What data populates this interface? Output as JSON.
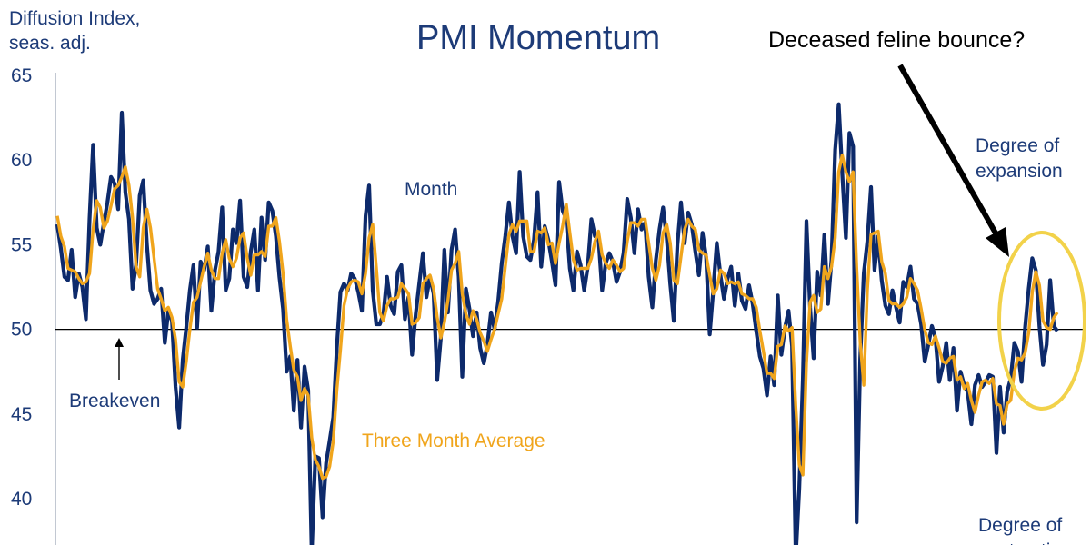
{
  "chart_data": {
    "type": "line",
    "title": "PMI Momentum",
    "ylabel": "Diffusion Index,\nseas. adj.",
    "ylabel_lines": [
      "Diffusion Index,",
      "seas. adj."
    ],
    "ylim": [
      38.5,
      65
    ],
    "yticks": [
      40,
      45,
      50,
      55,
      60,
      65
    ],
    "grid": false,
    "reference_line": {
      "y": 50,
      "label": "Breakeven"
    },
    "annotations": {
      "arrow_text": "Deceased feline bounce?",
      "top_right": [
        "Degree of",
        "expansion"
      ],
      "bottom_right": [
        "Degree of",
        "contraction"
      ],
      "month_label": "Month",
      "avg_label": "Three Month Average"
    },
    "colors": {
      "month": "#0d2a6b",
      "average": "#f0a51c",
      "text": "#1d3b78",
      "ellipse": "#f2d24a"
    },
    "series": [
      {
        "name": "Month",
        "values": [
          56.2,
          54.8,
          53.1,
          52.9,
          54.7,
          51.9,
          53.3,
          52.5,
          50.6,
          56.5,
          60.9,
          56.0,
          55.0,
          56.3,
          57.5,
          59.0,
          58.6,
          57.1,
          62.8,
          58.1,
          56.5,
          52.4,
          53.8,
          57.9,
          58.8,
          55.0,
          52.3,
          51.5,
          51.8,
          52.4,
          49.2,
          51.1,
          50.5,
          46.6,
          44.2,
          48.2,
          50.1,
          52.3,
          53.8,
          50.1,
          54.0,
          53.5,
          54.9,
          51.1,
          53.5,
          54.6,
          57.2,
          52.3,
          53.0,
          55.9,
          55.1,
          57.6,
          53.1,
          52.5,
          54.6,
          55.9,
          52.3,
          56.6,
          54.1,
          57.5,
          57.0,
          55.5,
          53.1,
          51.2,
          47.5,
          48.4,
          45.2,
          48.2,
          44.2,
          47.8,
          46.4,
          36.8,
          42.5,
          42.4,
          38.9,
          42.1,
          43.4,
          44.8,
          48.9,
          52.2,
          52.7,
          52.3,
          53.3,
          53.0,
          52.2,
          51.1,
          56.7,
          58.5,
          52.3,
          50.3,
          50.3,
          50.9,
          53.1,
          51.4,
          50.9,
          53.4,
          53.8,
          50.6,
          51.9,
          48.5,
          50.9,
          52.7,
          54.5,
          51.9,
          53.1,
          52.1,
          47.0,
          49.5,
          54.7,
          51.0,
          54.7,
          55.9,
          53.1,
          47.2,
          52.4,
          51.2,
          49.6,
          51.0,
          48.9,
          48.0,
          49.1,
          51.0,
          50.0,
          51.6,
          53.9,
          55.5,
          57.5,
          55.5,
          54.5,
          59.3,
          55.5,
          54.3,
          54.1,
          55.3,
          58.1,
          53.7,
          56.1,
          55.3,
          54.0,
          52.6,
          58.7,
          57.0,
          56.5,
          53.6,
          52.3,
          54.6,
          53.8,
          52.3,
          53.7,
          56.5,
          55.5,
          55.4,
          52.3,
          53.9,
          54.5,
          54.0,
          52.8,
          53.4,
          54.5,
          57.7,
          56.6,
          54.5,
          57.1,
          55.9,
          56.3,
          53.1,
          51.3,
          54.1,
          55.9,
          57.2,
          55.4,
          52.7,
          50.5,
          55.0,
          57.5,
          55.1,
          56.9,
          56.2,
          54.6,
          53.2,
          55.7,
          54.3,
          49.7,
          52.3,
          55.1,
          53.2,
          51.8,
          53.0,
          53.7,
          51.4,
          53.3,
          51.7,
          51.2,
          52.6,
          51.5,
          49.9,
          48.4,
          47.7,
          46.1,
          48.4,
          46.7,
          52.0,
          48.5,
          50.1,
          51.1,
          49.0,
          36.5,
          40.6,
          47.1,
          56.4,
          51.3,
          48.3,
          53.4,
          52.0,
          55.6,
          51.5,
          54.1,
          60.6,
          63.3,
          59.2,
          55.4,
          61.6,
          60.8,
          38.6,
          48.3,
          53.3,
          55.2,
          58.4,
          53.5,
          55.5,
          52.9,
          51.4,
          50.9,
          52.3,
          51.3,
          50.4,
          52.8,
          52.5,
          53.7,
          51.8,
          51.5,
          50.3,
          48.1,
          49.1,
          50.2,
          49.5,
          46.9,
          47.8,
          49.2,
          47.0,
          48.9,
          45.2,
          47.5,
          46.7,
          46.3,
          44.4,
          46.7,
          47.3,
          46.6,
          46.9,
          47.3,
          47.2,
          42.7,
          46.6,
          43.9,
          46.3,
          47.1,
          49.2,
          48.7,
          46.9,
          50.1,
          52.4,
          54.2,
          53.5,
          50.2,
          47.9,
          49.1,
          52.9,
          50.2,
          49.9
        ]
      },
      {
        "name": "Three Month Average",
        "values": [
          56.7,
          55.5,
          54.9,
          53.6,
          53.5,
          53.4,
          53.0,
          52.7,
          52.8,
          53.3,
          55.9,
          57.6,
          57.2,
          56.0,
          56.4,
          57.3,
          58.3,
          58.5,
          59.0,
          59.6,
          58.5,
          56.6,
          53.7,
          53.1,
          56.0,
          57.1,
          56.0,
          54.2,
          52.4,
          51.8,
          51.1,
          51.3,
          50.7,
          49.4,
          46.9,
          46.6,
          48.1,
          50.0,
          51.6,
          51.9,
          52.8,
          53.7,
          54.5,
          53.5,
          53.0,
          53.0,
          54.5,
          55.3,
          54.2,
          53.7,
          54.2,
          55.4,
          55.7,
          54.2,
          53.2,
          54.4,
          54.4,
          54.6,
          54.3,
          56.1,
          56.1,
          56.6,
          55.2,
          53.3,
          50.6,
          49.0,
          47.6,
          47.2,
          45.8,
          46.5,
          46.1,
          43.6,
          42.3,
          41.9,
          41.2,
          41.3,
          41.9,
          43.4,
          46.4,
          48.8,
          51.4,
          52.4,
          52.8,
          52.9,
          52.8,
          52.1,
          53.3,
          55.4,
          56.2,
          53.7,
          51.0,
          50.5,
          51.4,
          51.8,
          51.8,
          51.9,
          52.7,
          52.4,
          52.1,
          50.3,
          50.4,
          50.7,
          52.7,
          53.0,
          53.2,
          52.4,
          50.7,
          49.5,
          50.4,
          51.7,
          53.5,
          53.9,
          54.6,
          52.1,
          50.9,
          50.3,
          51.1,
          50.6,
          49.8,
          49.3,
          48.7,
          49.4,
          50.0,
          50.9,
          51.8,
          53.7,
          55.6,
          56.2,
          55.8,
          56.4,
          56.4,
          56.4,
          54.6,
          54.6,
          55.8,
          55.7,
          56.0,
          55.0,
          55.1,
          53.9,
          55.1,
          56.1,
          57.4,
          55.7,
          54.1,
          53.5,
          53.6,
          53.6,
          53.6,
          54.2,
          55.2,
          55.8,
          54.4,
          53.9,
          53.6,
          54.1,
          53.8,
          53.4,
          53.6,
          55.2,
          56.3,
          56.3,
          56.1,
          56.5,
          56.5,
          55.1,
          53.6,
          52.9,
          53.8,
          55.7,
          56.2,
          55.1,
          52.9,
          52.7,
          54.3,
          55.9,
          56.5,
          56.1,
          55.9,
          54.7,
          54.5,
          54.4,
          53.2,
          52.1,
          52.4,
          53.5,
          53.3,
          52.7,
          52.8,
          52.7,
          52.8,
          52.1,
          52.0,
          51.8,
          51.8,
          51.3,
          49.9,
          48.7,
          47.4,
          47.4,
          47.1,
          49.0,
          49.1,
          50.2,
          49.9,
          50.1,
          45.5,
          42.0,
          41.4,
          48.0,
          51.6,
          52.0,
          51.0,
          51.2,
          53.7,
          53.0,
          53.7,
          55.4,
          59.3,
          60.3,
          59.3,
          58.7,
          59.3,
          53.7,
          49.2,
          46.7,
          52.3,
          55.6,
          55.7,
          55.8,
          54.0,
          53.3,
          51.7,
          51.5,
          51.5,
          51.3,
          51.5,
          51.9,
          53.0,
          52.7,
          52.3,
          51.2,
          50.0,
          49.2,
          49.1,
          49.6,
          48.9,
          48.1,
          48.0,
          48.3,
          48.4,
          47.0,
          47.2,
          46.5,
          46.8,
          45.8,
          45.1,
          46.1,
          46.9,
          47.0,
          46.8,
          47.1,
          45.6,
          45.5,
          44.4,
          45.6,
          45.8,
          47.5,
          48.3,
          48.2,
          48.6,
          49.8,
          52.2,
          53.4,
          52.6,
          50.5,
          50.1,
          50.0,
          50.7,
          51.0
        ]
      }
    ]
  }
}
